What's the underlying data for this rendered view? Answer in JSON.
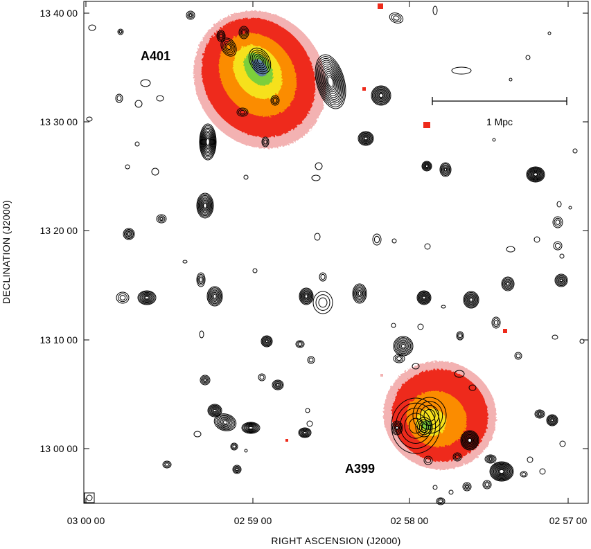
{
  "figure": {
    "xlabel": "RIGHT ASCENSION  (J2000)",
    "ylabel": "DECLINATION  (J2000)",
    "x_ticks": [
      "03 00 00",
      "02 59 00",
      "02 58 00",
      "02 57 00"
    ],
    "y_ticks": [
      "13 40 00",
      "13 30 00",
      "13 20 00",
      "13 10 00",
      "13 00 00"
    ],
    "clusters": [
      {
        "name": "A401"
      },
      {
        "name": "A399"
      }
    ],
    "scale_bar": {
      "label": "1 Mpc"
    },
    "colors": {
      "xray_outer": "#f3b2b2",
      "xray_mid": "#ee2a1a",
      "xray_warm": "#fb8c00",
      "xray_yellow": "#f6e11a",
      "xray_green": "#7ccf3a",
      "xray_peak": "#5d7ea2",
      "contours": "#000000"
    }
  }
}
